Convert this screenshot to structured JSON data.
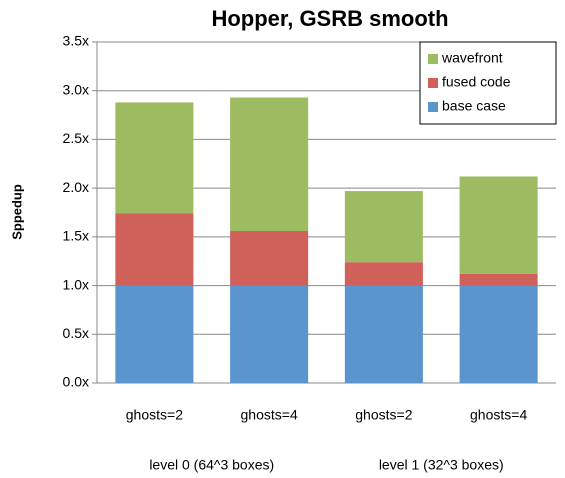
{
  "chart_data": {
    "type": "stacked_bar",
    "title": "Hopper, GSRB smooth",
    "y_label": "Sppedup",
    "categories": [
      "ghosts=2",
      "ghosts=4",
      "ghosts=2",
      "ghosts=4"
    ],
    "groups": [
      "level 0 (64^3 boxes)",
      "level 1 (32^3 boxes)"
    ],
    "series": [
      {
        "name": "base case",
        "color": "#5b95cd",
        "values": [
          1.0,
          1.0,
          1.0,
          1.0
        ]
      },
      {
        "name": "fused code",
        "color": "#d0605a",
        "values": [
          0.74,
          0.56,
          0.24,
          0.12
        ]
      },
      {
        "name": "wavefront",
        "color": "#9dbb61",
        "values": [
          1.14,
          1.37,
          0.73,
          1.0
        ]
      }
    ],
    "ylim": [
      0,
      3.5
    ],
    "yticks": [
      {
        "value": 0,
        "label": "0.0x"
      },
      {
        "value": 0.5,
        "label": "0.5x"
      },
      {
        "value": 1,
        "label": "1.0x"
      },
      {
        "value": 1.5,
        "label": "1.5x"
      },
      {
        "value": 2,
        "label": "2.0x"
      },
      {
        "value": 2.5,
        "label": "2.5x"
      },
      {
        "value": 3,
        "label": "3.0x"
      },
      {
        "value": 3.5,
        "label": "3.5x"
      }
    ],
    "grid": true,
    "legend": "upper right"
  }
}
